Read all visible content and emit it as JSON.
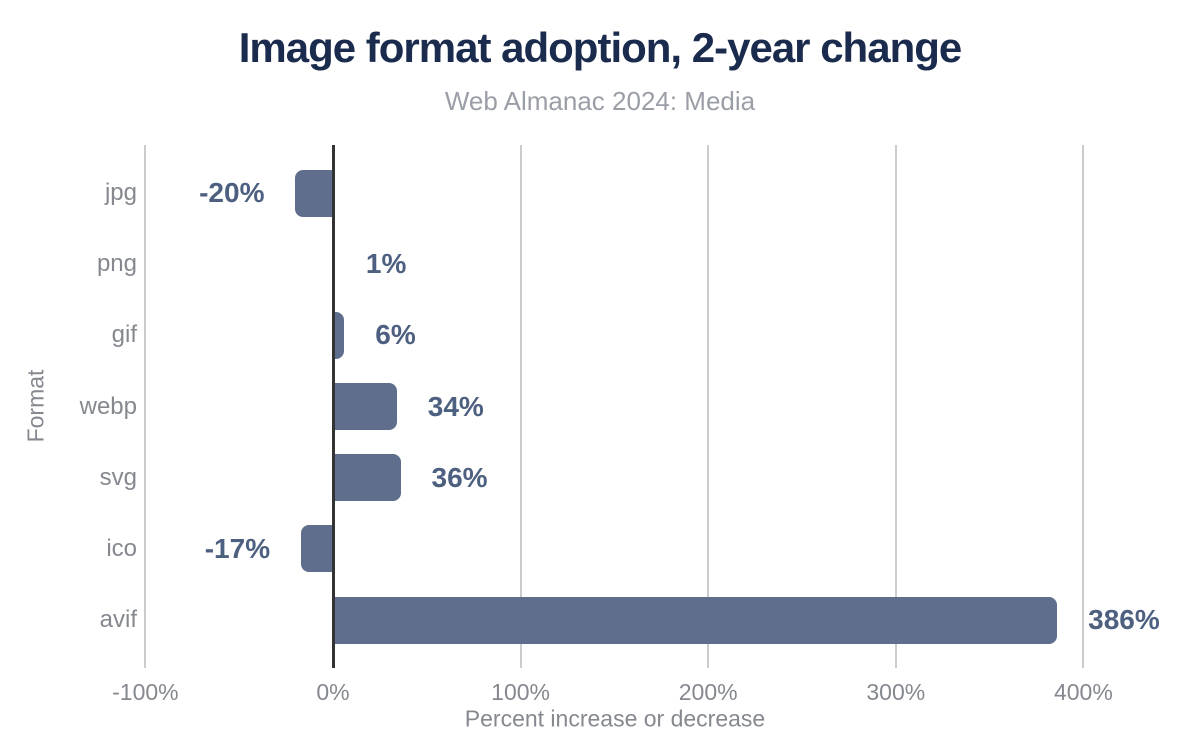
{
  "chart_data": {
    "type": "bar",
    "orientation": "horizontal",
    "title": "Image format adoption, 2-year change",
    "subtitle": "Web Almanac 2024: Media",
    "xlabel": "Percent increase or decrease",
    "ylabel": "Format",
    "categories": [
      "jpg",
      "png",
      "gif",
      "webp",
      "svg",
      "ico",
      "avif"
    ],
    "values": [
      -20,
      1,
      6,
      34,
      36,
      -17,
      386
    ],
    "value_labels": [
      "-20%",
      "1%",
      "6%",
      "34%",
      "36%",
      "-17%",
      "386%"
    ],
    "x_ticks": [
      -100,
      0,
      100,
      200,
      300,
      400
    ],
    "x_tick_labels": [
      "-100%",
      "0%",
      "100%",
      "200%",
      "300%",
      "400%"
    ],
    "xlim": [
      -100,
      453
    ],
    "grid": true,
    "legend": false,
    "colors": {
      "bar": "#5f6e8c",
      "value_label": "#4d6080",
      "title": "#1a2b4d",
      "subtitle": "#9a9ea6",
      "axis_text": "#85898f",
      "gridline": "#cccccc",
      "zero_line": "#333333"
    }
  }
}
